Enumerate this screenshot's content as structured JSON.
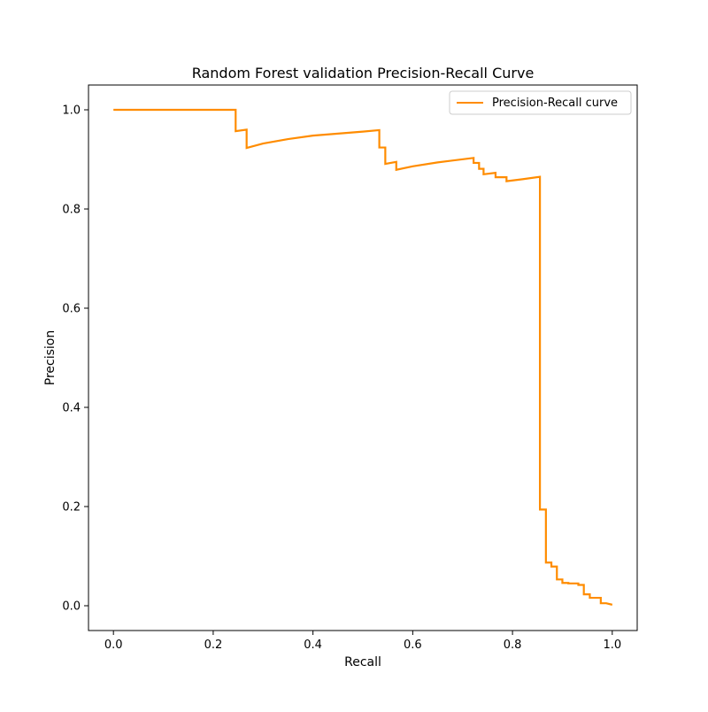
{
  "chart_data": {
    "type": "line",
    "title": "Random Forest validation Precision-Recall Curve",
    "xlabel": "Recall",
    "ylabel": "Precision",
    "xlim": [
      -0.05,
      1.05
    ],
    "ylim": [
      -0.05,
      1.05
    ],
    "x_ticks": [
      0.0,
      0.2,
      0.4,
      0.6,
      0.8,
      1.0
    ],
    "y_ticks": [
      0.0,
      0.2,
      0.4,
      0.6,
      0.8,
      1.0
    ],
    "x_tick_labels": [
      "0.0",
      "0.2",
      "0.4",
      "0.6",
      "0.8",
      "1.0"
    ],
    "y_tick_labels": [
      "0.0",
      "0.2",
      "0.4",
      "0.6",
      "0.8",
      "1.0"
    ],
    "grid": false,
    "legend_position": "upper right",
    "series": [
      {
        "name": "Precision-Recall curve",
        "color": "#ff8c00",
        "points": [
          [
            0.0,
            1.0
          ],
          [
            0.245,
            1.0
          ],
          [
            0.245,
            0.957
          ],
          [
            0.267,
            0.96
          ],
          [
            0.267,
            0.923
          ],
          [
            0.3,
            0.932
          ],
          [
            0.35,
            0.941
          ],
          [
            0.4,
            0.948
          ],
          [
            0.45,
            0.952
          ],
          [
            0.5,
            0.956
          ],
          [
            0.533,
            0.959
          ],
          [
            0.533,
            0.924
          ],
          [
            0.545,
            0.924
          ],
          [
            0.545,
            0.891
          ],
          [
            0.567,
            0.895
          ],
          [
            0.567,
            0.879
          ],
          [
            0.6,
            0.886
          ],
          [
            0.65,
            0.894
          ],
          [
            0.722,
            0.903
          ],
          [
            0.722,
            0.893
          ],
          [
            0.733,
            0.893
          ],
          [
            0.733,
            0.881
          ],
          [
            0.742,
            0.881
          ],
          [
            0.742,
            0.87
          ],
          [
            0.766,
            0.873
          ],
          [
            0.766,
            0.864
          ],
          [
            0.788,
            0.864
          ],
          [
            0.788,
            0.856
          ],
          [
            0.82,
            0.86
          ],
          [
            0.855,
            0.865
          ],
          [
            0.855,
            0.194
          ],
          [
            0.867,
            0.194
          ],
          [
            0.867,
            0.087
          ],
          [
            0.878,
            0.087
          ],
          [
            0.878,
            0.079
          ],
          [
            0.889,
            0.079
          ],
          [
            0.889,
            0.053
          ],
          [
            0.9,
            0.053
          ],
          [
            0.9,
            0.046
          ],
          [
            0.912,
            0.046
          ],
          [
            0.912,
            0.045
          ],
          [
            0.932,
            0.045
          ],
          [
            0.932,
            0.042
          ],
          [
            0.943,
            0.042
          ],
          [
            0.943,
            0.023
          ],
          [
            0.955,
            0.023
          ],
          [
            0.955,
            0.016
          ],
          [
            0.977,
            0.016
          ],
          [
            0.977,
            0.005
          ],
          [
            0.988,
            0.005
          ],
          [
            1.0,
            0.002
          ]
        ]
      }
    ]
  }
}
